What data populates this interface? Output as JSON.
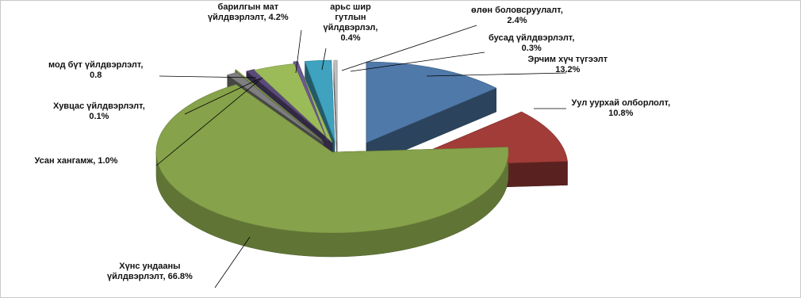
{
  "chart_data": {
    "type": "pie",
    "title": "",
    "variant": "3d-exploded",
    "slices": [
      {
        "name": "Эрчим хүч түгээлт",
        "value": 13.2,
        "label_lines": [
          "Эрчим хүч түгээлт",
          "13.2%"
        ],
        "color": "#4F79A8"
      },
      {
        "name": "Уул уурхай олборлолт",
        "value": 10.8,
        "label_lines": [
          "Уул уурхай  олборлолт,",
          "10.8%"
        ],
        "color": "#A23C38"
      },
      {
        "name": "Хүнс ундааны үйлдвэрлэлт",
        "value": 66.8,
        "label_lines": [
          "Хүнс ундааны",
          "үйлдвэрлэлт,  66.8%"
        ],
        "color": "#86A24A"
      },
      {
        "name": "Усан хангамж",
        "value": 1.0,
        "label_lines": [
          "Усан хангамж,  1.0%"
        ],
        "color": "#7F7F7F"
      },
      {
        "name": "Хувцас үйлдвэрлэлт",
        "value": 0.1,
        "label_lines": [
          "Хувцас үйлдвэрлэлт,",
          "0.1%"
        ],
        "color": "#9BBB59"
      },
      {
        "name": "Мод бүт үйлдвэрлэлт",
        "value": 0.8,
        "label_lines": [
          "мод бүт үйлдвэрлэлт,",
          "0.8"
        ],
        "color": "#5A4A7A"
      },
      {
        "name": "Барилгын мат үйлдвэрлэлт",
        "value": 4.2,
        "label_lines": [
          "барилгын мат",
          "үйлдвэрлэлт,  4.2%"
        ],
        "color": "#9BBB59"
      },
      {
        "name": "Арьс шир гутлын үйлдвэрлэл",
        "value": 0.4,
        "label_lines": [
          "арьс шир",
          "гутлын",
          "үйлдвэрлэл,",
          "0.4%"
        ],
        "color": "#6B5A92"
      },
      {
        "name": "Өлөн боловсруулалт",
        "value": 2.4,
        "label_lines": [
          "өлөн боловсруулалт,",
          "2.4%"
        ],
        "color": "#3FA2BF"
      },
      {
        "name": "Бусад үйлдвэрлэлт",
        "value": 0.3,
        "label_lines": [
          "бусад үйлдвэрлэлт,",
          "0.3%"
        ],
        "color": "#C0C0C0"
      }
    ]
  }
}
